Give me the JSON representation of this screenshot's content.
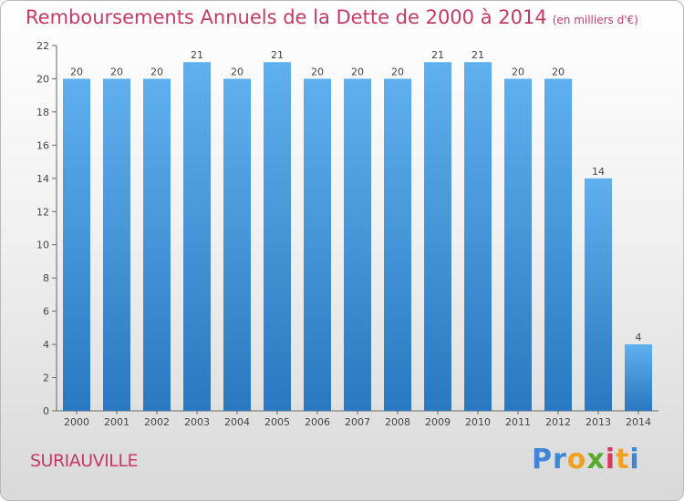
{
  "colors": {
    "title": "#c43a62",
    "bar_light": "#5fb0ee",
    "bar_dark": "#2a78c0",
    "axis": "#555555"
  },
  "header": {
    "title": "Remboursements Annuels de la Dette de 2000 à 2014",
    "unit": "(en milliers d'€)"
  },
  "footer": {
    "commune": "SURIAUVILLE",
    "logo": "Proxiti"
  },
  "chart_data": {
    "type": "bar",
    "title": "Remboursements Annuels de la Dette de 2000 à 2014",
    "subtitle": "(en milliers d'€)",
    "xlabel": "",
    "ylabel": "",
    "categories": [
      "2000",
      "2001",
      "2002",
      "2003",
      "2004",
      "2005",
      "2006",
      "2007",
      "2008",
      "2009",
      "2010",
      "2011",
      "2012",
      "2013",
      "2014"
    ],
    "values": [
      20,
      20,
      20,
      21,
      20,
      21,
      20,
      20,
      20,
      21,
      21,
      20,
      20,
      14,
      4
    ],
    "ylim": [
      0,
      22
    ],
    "yticks": [
      0,
      2,
      4,
      6,
      8,
      10,
      12,
      14,
      16,
      18,
      20,
      22
    ],
    "grid": false,
    "legend": "none"
  }
}
